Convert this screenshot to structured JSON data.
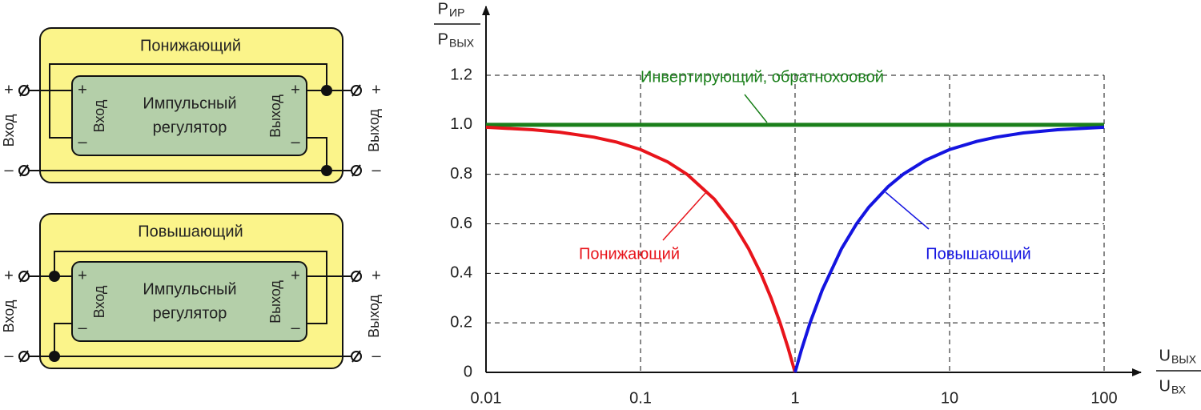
{
  "diagrams": [
    {
      "title": "Понижающий",
      "block": [
        "Импульсный",
        "регулятор"
      ],
      "input": "Вход",
      "output": "Выход",
      "plus": "+",
      "minus": "–"
    },
    {
      "title": "Повышающий",
      "block": [
        "Импульсный",
        "регулятор"
      ],
      "input": "Вход",
      "output": "Выход",
      "plus": "+",
      "minus": "–"
    }
  ],
  "chart_data": {
    "type": "line",
    "y_label": {
      "numerator": {
        "main": "Р",
        "sub": "ИР"
      },
      "denominator": {
        "main": "Р",
        "sub": "ВЫХ"
      }
    },
    "x_label": {
      "numerator": {
        "main": "U",
        "sub": "ВЫХ"
      },
      "denominator": {
        "main": "U",
        "sub": "ВХ"
      }
    },
    "xscale": "log",
    "xlim": [
      0.01,
      100
    ],
    "xticks": [
      0.01,
      0.1,
      1,
      10,
      100
    ],
    "ylim": [
      0,
      1.2
    ],
    "yticks": [
      0,
      0.2,
      0.4,
      0.6,
      0.8,
      {
        "value": 1,
        "label": "1.0"
      },
      1.2
    ],
    "grid": true,
    "series": [
      {
        "name": "Инвертирующий, обратнохоовой",
        "color": "#1a7f1a",
        "x": [
          0.01,
          100
        ],
        "values": [
          1,
          1
        ]
      },
      {
        "name": "Понижающий",
        "color": "#e8141b",
        "x": [
          0.01,
          0.02,
          0.03,
          0.05,
          0.07,
          0.1,
          0.15,
          0.2,
          0.3,
          0.4,
          0.5,
          0.6,
          0.7,
          0.8,
          0.9,
          1
        ],
        "values": [
          0.99,
          0.98,
          0.97,
          0.95,
          0.93,
          0.9,
          0.85,
          0.8,
          0.7,
          0.6,
          0.5,
          0.4,
          0.3,
          0.2,
          0.1,
          0
        ]
      },
      {
        "name": "Повышающий",
        "color": "#1414e0",
        "x": [
          1,
          1.1,
          1.25,
          1.5,
          2,
          2.5,
          3,
          4,
          5,
          7,
          10,
          15,
          20,
          30,
          50,
          100
        ],
        "values": [
          0,
          0.091,
          0.2,
          0.333,
          0.5,
          0.6,
          0.667,
          0.75,
          0.8,
          0.857,
          0.9,
          0.933,
          0.95,
          0.967,
          0.98,
          0.99
        ]
      }
    ]
  }
}
